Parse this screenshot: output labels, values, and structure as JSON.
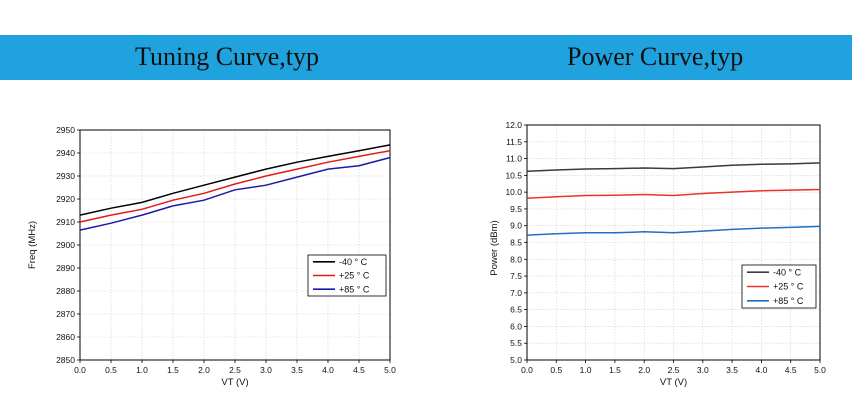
{
  "header": {
    "left_title": "Tuning Curve,typ",
    "right_title": "Power Curve,typ"
  },
  "chart_data": [
    {
      "type": "line",
      "title": "",
      "xlabel": "VT (V)",
      "ylabel": "Freq (MHz)",
      "xlim": [
        0.0,
        5.0
      ],
      "ylim": [
        2850,
        2950
      ],
      "x_ticks": [
        "0.0",
        "0.5",
        "1.0",
        "1.5",
        "2.0",
        "2.5",
        "3.0",
        "3.5",
        "4.0",
        "4.5",
        "5.0"
      ],
      "y_ticks": [
        "2850",
        "2860",
        "2870",
        "2880",
        "2890",
        "2900",
        "2910",
        "2920",
        "2930",
        "2940",
        "2950"
      ],
      "grid": true,
      "legend_position": "lower-right",
      "x": [
        0.0,
        0.5,
        1.0,
        1.5,
        2.0,
        2.5,
        3.0,
        3.5,
        4.0,
        4.5,
        5.0
      ],
      "series": [
        {
          "name": "-40 ° C",
          "color": "#000000",
          "values": [
            2913,
            2916,
            2918.5,
            2922.5,
            2926,
            2929.5,
            2933,
            2936,
            2938.5,
            2941,
            2943.5
          ]
        },
        {
          "name": "+25 ° C",
          "color": "#e31a1c",
          "values": [
            2910,
            2913,
            2915.5,
            2919.5,
            2922.5,
            2926.5,
            2930,
            2933,
            2936,
            2938.5,
            2941
          ]
        },
        {
          "name": "+85 ° C",
          "color": "#1a1aa6",
          "values": [
            2906.5,
            2909.5,
            2913,
            2917,
            2919.5,
            2924,
            2926,
            2929.5,
            2933,
            2934.5,
            2938
          ]
        }
      ]
    },
    {
      "type": "line",
      "title": "",
      "xlabel": "VT (V)",
      "ylabel": "Power (dBm)",
      "xlim": [
        0.0,
        5.0
      ],
      "ylim": [
        5.0,
        12.0
      ],
      "x_ticks": [
        "0.0",
        "0.5",
        "1.0",
        "1.5",
        "2.0",
        "2.5",
        "3.0",
        "3.5",
        "4.0",
        "4.5",
        "5.0"
      ],
      "y_ticks": [
        "5.0",
        "5.5",
        "6.0",
        "6.5",
        "7.0",
        "7.5",
        "8.0",
        "8.5",
        "9.0",
        "9.5",
        "10.0",
        "10.5",
        "11.0",
        "11.5",
        "12.0"
      ],
      "grid": true,
      "legend_position": "lower-right",
      "x": [
        0.0,
        0.5,
        1.0,
        1.5,
        2.0,
        2.5,
        3.0,
        3.5,
        4.0,
        4.5,
        5.0
      ],
      "series": [
        {
          "name": "-40 ° C",
          "color": "#3a3a3a",
          "values": [
            10.62,
            10.66,
            10.69,
            10.7,
            10.72,
            10.7,
            10.75,
            10.8,
            10.83,
            10.84,
            10.87
          ]
        },
        {
          "name": "+25 ° C",
          "color": "#e8342c",
          "values": [
            9.82,
            9.86,
            9.9,
            9.91,
            9.93,
            9.9,
            9.96,
            10.0,
            10.04,
            10.06,
            10.08
          ]
        },
        {
          "name": "+85 ° C",
          "color": "#1f6fc4",
          "values": [
            8.72,
            8.76,
            8.79,
            8.79,
            8.82,
            8.79,
            8.84,
            8.89,
            8.93,
            8.95,
            8.98
          ]
        }
      ]
    }
  ]
}
